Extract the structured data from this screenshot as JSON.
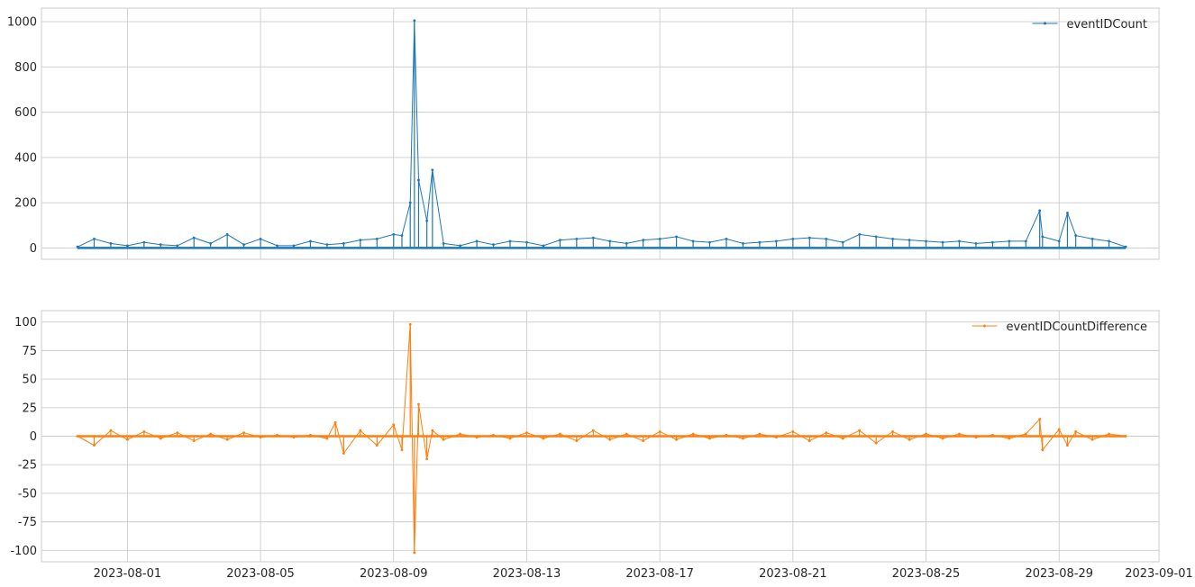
{
  "chart_data": [
    {
      "type": "line",
      "title": "",
      "xlabel": "",
      "ylabel": "",
      "x_type": "date",
      "xlim": [
        "2023-07-29T10:00",
        "2023-09-01T00:00"
      ],
      "ylim": [
        -50,
        1060
      ],
      "y_ticks": [
        0,
        200,
        400,
        600,
        800,
        1000
      ],
      "x_ticks": [
        "2023-08-01",
        "2023-08-05",
        "2023-08-09",
        "2023-08-13",
        "2023-08-17",
        "2023-08-21",
        "2023-08-25",
        "2023-08-29",
        "2023-09-01"
      ],
      "show_x_tick_labels": false,
      "grid": true,
      "legend_position": "top-right",
      "series": [
        {
          "name": "eventIDCount",
          "color": "#1f77b4",
          "x": [
            "2023-07-30T12:00",
            "2023-07-31T00:00",
            "2023-07-31T12:00",
            "2023-08-01T00:00",
            "2023-08-01T12:00",
            "2023-08-02T00:00",
            "2023-08-02T12:00",
            "2023-08-03T00:00",
            "2023-08-03T12:00",
            "2023-08-04T00:00",
            "2023-08-04T12:00",
            "2023-08-05T00:00",
            "2023-08-05T12:00",
            "2023-08-06T00:00",
            "2023-08-06T12:00",
            "2023-08-07T00:00",
            "2023-08-07T12:00",
            "2023-08-08T00:00",
            "2023-08-08T12:00",
            "2023-08-09T00:00",
            "2023-08-09T06:00",
            "2023-08-09T12:00",
            "2023-08-09T15:00",
            "2023-08-09T18:00",
            "2023-08-10T00:00",
            "2023-08-10T04:00",
            "2023-08-10T12:00",
            "2023-08-11T00:00",
            "2023-08-11T12:00",
            "2023-08-12T00:00",
            "2023-08-12T12:00",
            "2023-08-13T00:00",
            "2023-08-13T12:00",
            "2023-08-14T00:00",
            "2023-08-14T12:00",
            "2023-08-15T00:00",
            "2023-08-15T12:00",
            "2023-08-16T00:00",
            "2023-08-16T12:00",
            "2023-08-17T00:00",
            "2023-08-17T12:00",
            "2023-08-18T00:00",
            "2023-08-18T12:00",
            "2023-08-19T00:00",
            "2023-08-19T12:00",
            "2023-08-20T00:00",
            "2023-08-20T12:00",
            "2023-08-21T00:00",
            "2023-08-21T12:00",
            "2023-08-22T00:00",
            "2023-08-22T12:00",
            "2023-08-23T00:00",
            "2023-08-23T12:00",
            "2023-08-24T00:00",
            "2023-08-24T12:00",
            "2023-08-25T00:00",
            "2023-08-25T12:00",
            "2023-08-26T00:00",
            "2023-08-26T12:00",
            "2023-08-27T00:00",
            "2023-08-27T12:00",
            "2023-08-28T00:00",
            "2023-08-28T10:00",
            "2023-08-28T12:00",
            "2023-08-29T00:00",
            "2023-08-29T06:00",
            "2023-08-29T12:00",
            "2023-08-30T00:00",
            "2023-08-30T12:00",
            "2023-08-31T00:00"
          ],
          "y": [
            5,
            40,
            20,
            10,
            25,
            15,
            10,
            45,
            20,
            60,
            15,
            40,
            10,
            10,
            30,
            15,
            20,
            35,
            40,
            60,
            55,
            200,
            1005,
            300,
            120,
            345,
            20,
            10,
            30,
            15,
            30,
            25,
            10,
            35,
            40,
            45,
            30,
            20,
            35,
            40,
            50,
            30,
            25,
            40,
            20,
            25,
            30,
            40,
            45,
            40,
            25,
            60,
            50,
            40,
            35,
            30,
            25,
            30,
            20,
            25,
            30,
            30,
            165,
            50,
            30,
            155,
            55,
            40,
            30,
            5
          ]
        }
      ]
    },
    {
      "type": "line",
      "title": "",
      "xlabel": "",
      "ylabel": "",
      "x_type": "date",
      "xlim": [
        "2023-07-29T10:00",
        "2023-09-01T00:00"
      ],
      "ylim": [
        -110,
        110
      ],
      "y_ticks": [
        -100,
        -75,
        -50,
        -25,
        0,
        25,
        50,
        75,
        100
      ],
      "x_ticks": [
        "2023-08-01",
        "2023-08-05",
        "2023-08-09",
        "2023-08-13",
        "2023-08-17",
        "2023-08-21",
        "2023-08-25",
        "2023-08-29",
        "2023-09-01"
      ],
      "show_x_tick_labels": true,
      "grid": true,
      "legend_position": "top-right",
      "series": [
        {
          "name": "eventIDCountDifference",
          "color": "#ff7f0e",
          "x": [
            "2023-07-30T12:00",
            "2023-07-31T00:00",
            "2023-07-31T12:00",
            "2023-08-01T00:00",
            "2023-08-01T12:00",
            "2023-08-02T00:00",
            "2023-08-02T12:00",
            "2023-08-03T00:00",
            "2023-08-03T12:00",
            "2023-08-04T00:00",
            "2023-08-04T12:00",
            "2023-08-05T00:00",
            "2023-08-05T12:00",
            "2023-08-06T00:00",
            "2023-08-06T12:00",
            "2023-08-07T00:00",
            "2023-08-07T06:00",
            "2023-08-07T12:00",
            "2023-08-08T00:00",
            "2023-08-08T12:00",
            "2023-08-09T00:00",
            "2023-08-09T06:00",
            "2023-08-09T12:00",
            "2023-08-09T15:00",
            "2023-08-09T18:00",
            "2023-08-10T00:00",
            "2023-08-10T04:00",
            "2023-08-10T12:00",
            "2023-08-11T00:00",
            "2023-08-11T12:00",
            "2023-08-12T00:00",
            "2023-08-12T12:00",
            "2023-08-13T00:00",
            "2023-08-13T12:00",
            "2023-08-14T00:00",
            "2023-08-14T12:00",
            "2023-08-15T00:00",
            "2023-08-15T12:00",
            "2023-08-16T00:00",
            "2023-08-16T12:00",
            "2023-08-17T00:00",
            "2023-08-17T12:00",
            "2023-08-18T00:00",
            "2023-08-18T12:00",
            "2023-08-19T00:00",
            "2023-08-19T12:00",
            "2023-08-20T00:00",
            "2023-08-20T12:00",
            "2023-08-21T00:00",
            "2023-08-21T12:00",
            "2023-08-22T00:00",
            "2023-08-22T12:00",
            "2023-08-23T00:00",
            "2023-08-23T12:00",
            "2023-08-24T00:00",
            "2023-08-24T12:00",
            "2023-08-25T00:00",
            "2023-08-25T12:00",
            "2023-08-26T00:00",
            "2023-08-26T12:00",
            "2023-08-27T00:00",
            "2023-08-27T12:00",
            "2023-08-28T00:00",
            "2023-08-28T10:00",
            "2023-08-28T12:00",
            "2023-08-29T00:00",
            "2023-08-29T06:00",
            "2023-08-29T12:00",
            "2023-08-30T00:00",
            "2023-08-30T12:00",
            "2023-08-31T00:00"
          ],
          "y": [
            0,
            -8,
            5,
            -3,
            4,
            -2,
            3,
            -4,
            2,
            -3,
            3,
            -1,
            1,
            -1,
            1,
            -2,
            12,
            -15,
            5,
            -8,
            10,
            -12,
            98,
            -102,
            28,
            -20,
            5,
            -3,
            2,
            -1,
            1,
            -2,
            3,
            -2,
            2,
            -4,
            5,
            -3,
            2,
            -4,
            4,
            -3,
            2,
            -2,
            1,
            -2,
            2,
            -1,
            4,
            -4,
            3,
            -2,
            5,
            -6,
            4,
            -3,
            2,
            -2,
            2,
            -1,
            1,
            -2,
            2,
            15,
            -12,
            6,
            -8,
            4,
            -3,
            2,
            0
          ]
        }
      ]
    }
  ]
}
